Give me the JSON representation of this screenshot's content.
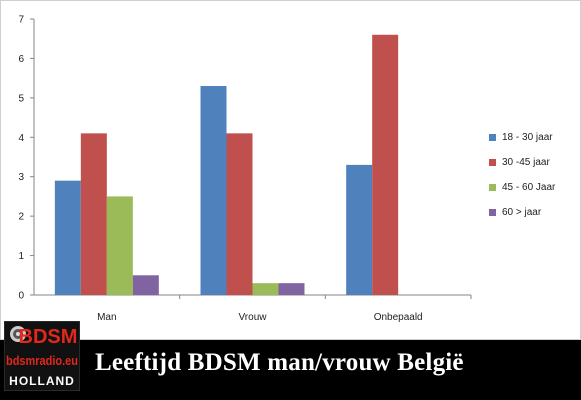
{
  "chart_data": {
    "type": "bar",
    "categories": [
      "Man",
      "Vrouw",
      "Onbepaald"
    ],
    "series": [
      {
        "name": "18 - 30 jaar",
        "values": [
          2.9,
          5.3,
          3.3
        ],
        "color": "#4f81bd"
      },
      {
        "name": "30 -45 jaar",
        "values": [
          4.1,
          4.1,
          6.6
        ],
        "color": "#c0504d"
      },
      {
        "name": "45 - 60 Jaar",
        "values": [
          2.5,
          0.3,
          0
        ],
        "color": "#9bbb59"
      },
      {
        "name": "60 > jaar",
        "values": [
          0.5,
          0.3,
          0
        ],
        "color": "#8064a2"
      }
    ],
    "y_ticks": [
      "0",
      "1",
      "2",
      "3",
      "4",
      "5",
      "6",
      "7"
    ],
    "ylim": [
      0,
      7
    ],
    "grid": false,
    "legend": "right"
  },
  "banner": {
    "title": "Leeftijd BDSM man/vrouw België"
  },
  "logo": {
    "line1": "BDSM",
    "line2": "bdsmradio.eu",
    "line3": "HOLLAND",
    "icon": "speaker-icon"
  }
}
